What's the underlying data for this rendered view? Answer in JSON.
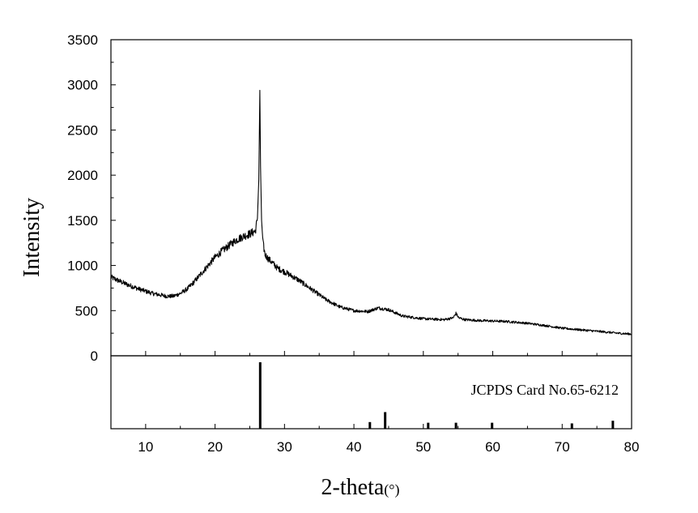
{
  "chart_data": {
    "type": "line",
    "xlabel": "2-theta",
    "xlabel_unit": "(°)",
    "ylabel": "Intensity",
    "xlim": [
      5,
      80
    ],
    "ylim": [
      0,
      3500
    ],
    "x_ticks": [
      10,
      20,
      30,
      40,
      50,
      60,
      70,
      80
    ],
    "y_ticks": [
      0,
      500,
      1000,
      1500,
      2000,
      2500,
      3000,
      3500
    ],
    "grid": false,
    "series": [
      {
        "x": [
          5,
          7,
          9,
          11,
          13,
          14,
          15,
          16,
          17,
          18,
          19,
          20,
          21,
          22,
          23,
          24,
          25,
          25.8,
          26.1,
          26.3,
          26.45,
          26.55,
          26.7,
          26.9,
          27.2,
          27.6,
          28,
          29,
          30,
          32,
          34,
          36,
          38,
          40,
          42,
          43.5,
          45,
          47,
          50,
          53,
          54.3,
          54.7,
          55.1,
          56,
          58,
          60,
          62,
          65,
          68,
          70,
          73,
          76,
          78,
          80
        ],
        "y": [
          870,
          800,
          740,
          690,
          660,
          660,
          690,
          740,
          820,
          910,
          1000,
          1090,
          1160,
          1220,
          1280,
          1320,
          1350,
          1380,
          1520,
          1950,
          2940,
          2100,
          1500,
          1250,
          1120,
          1080,
          1050,
          970,
          930,
          840,
          730,
          620,
          540,
          500,
          490,
          530,
          510,
          440,
          410,
          400,
          420,
          470,
          420,
          400,
          390,
          385,
          380,
          360,
          330,
          305,
          285,
          265,
          250,
          240
        ]
      }
    ],
    "reference": {
      "label": "JCPDS Card No.65-6212",
      "peaks_x": [
        26.5,
        42.3,
        44.5,
        50.7,
        54.7,
        59.9,
        71.4,
        77.3
      ],
      "peaks_relative_height": [
        1.0,
        0.1,
        0.25,
        0.09,
        0.09,
        0.09,
        0.08,
        0.12
      ]
    }
  }
}
